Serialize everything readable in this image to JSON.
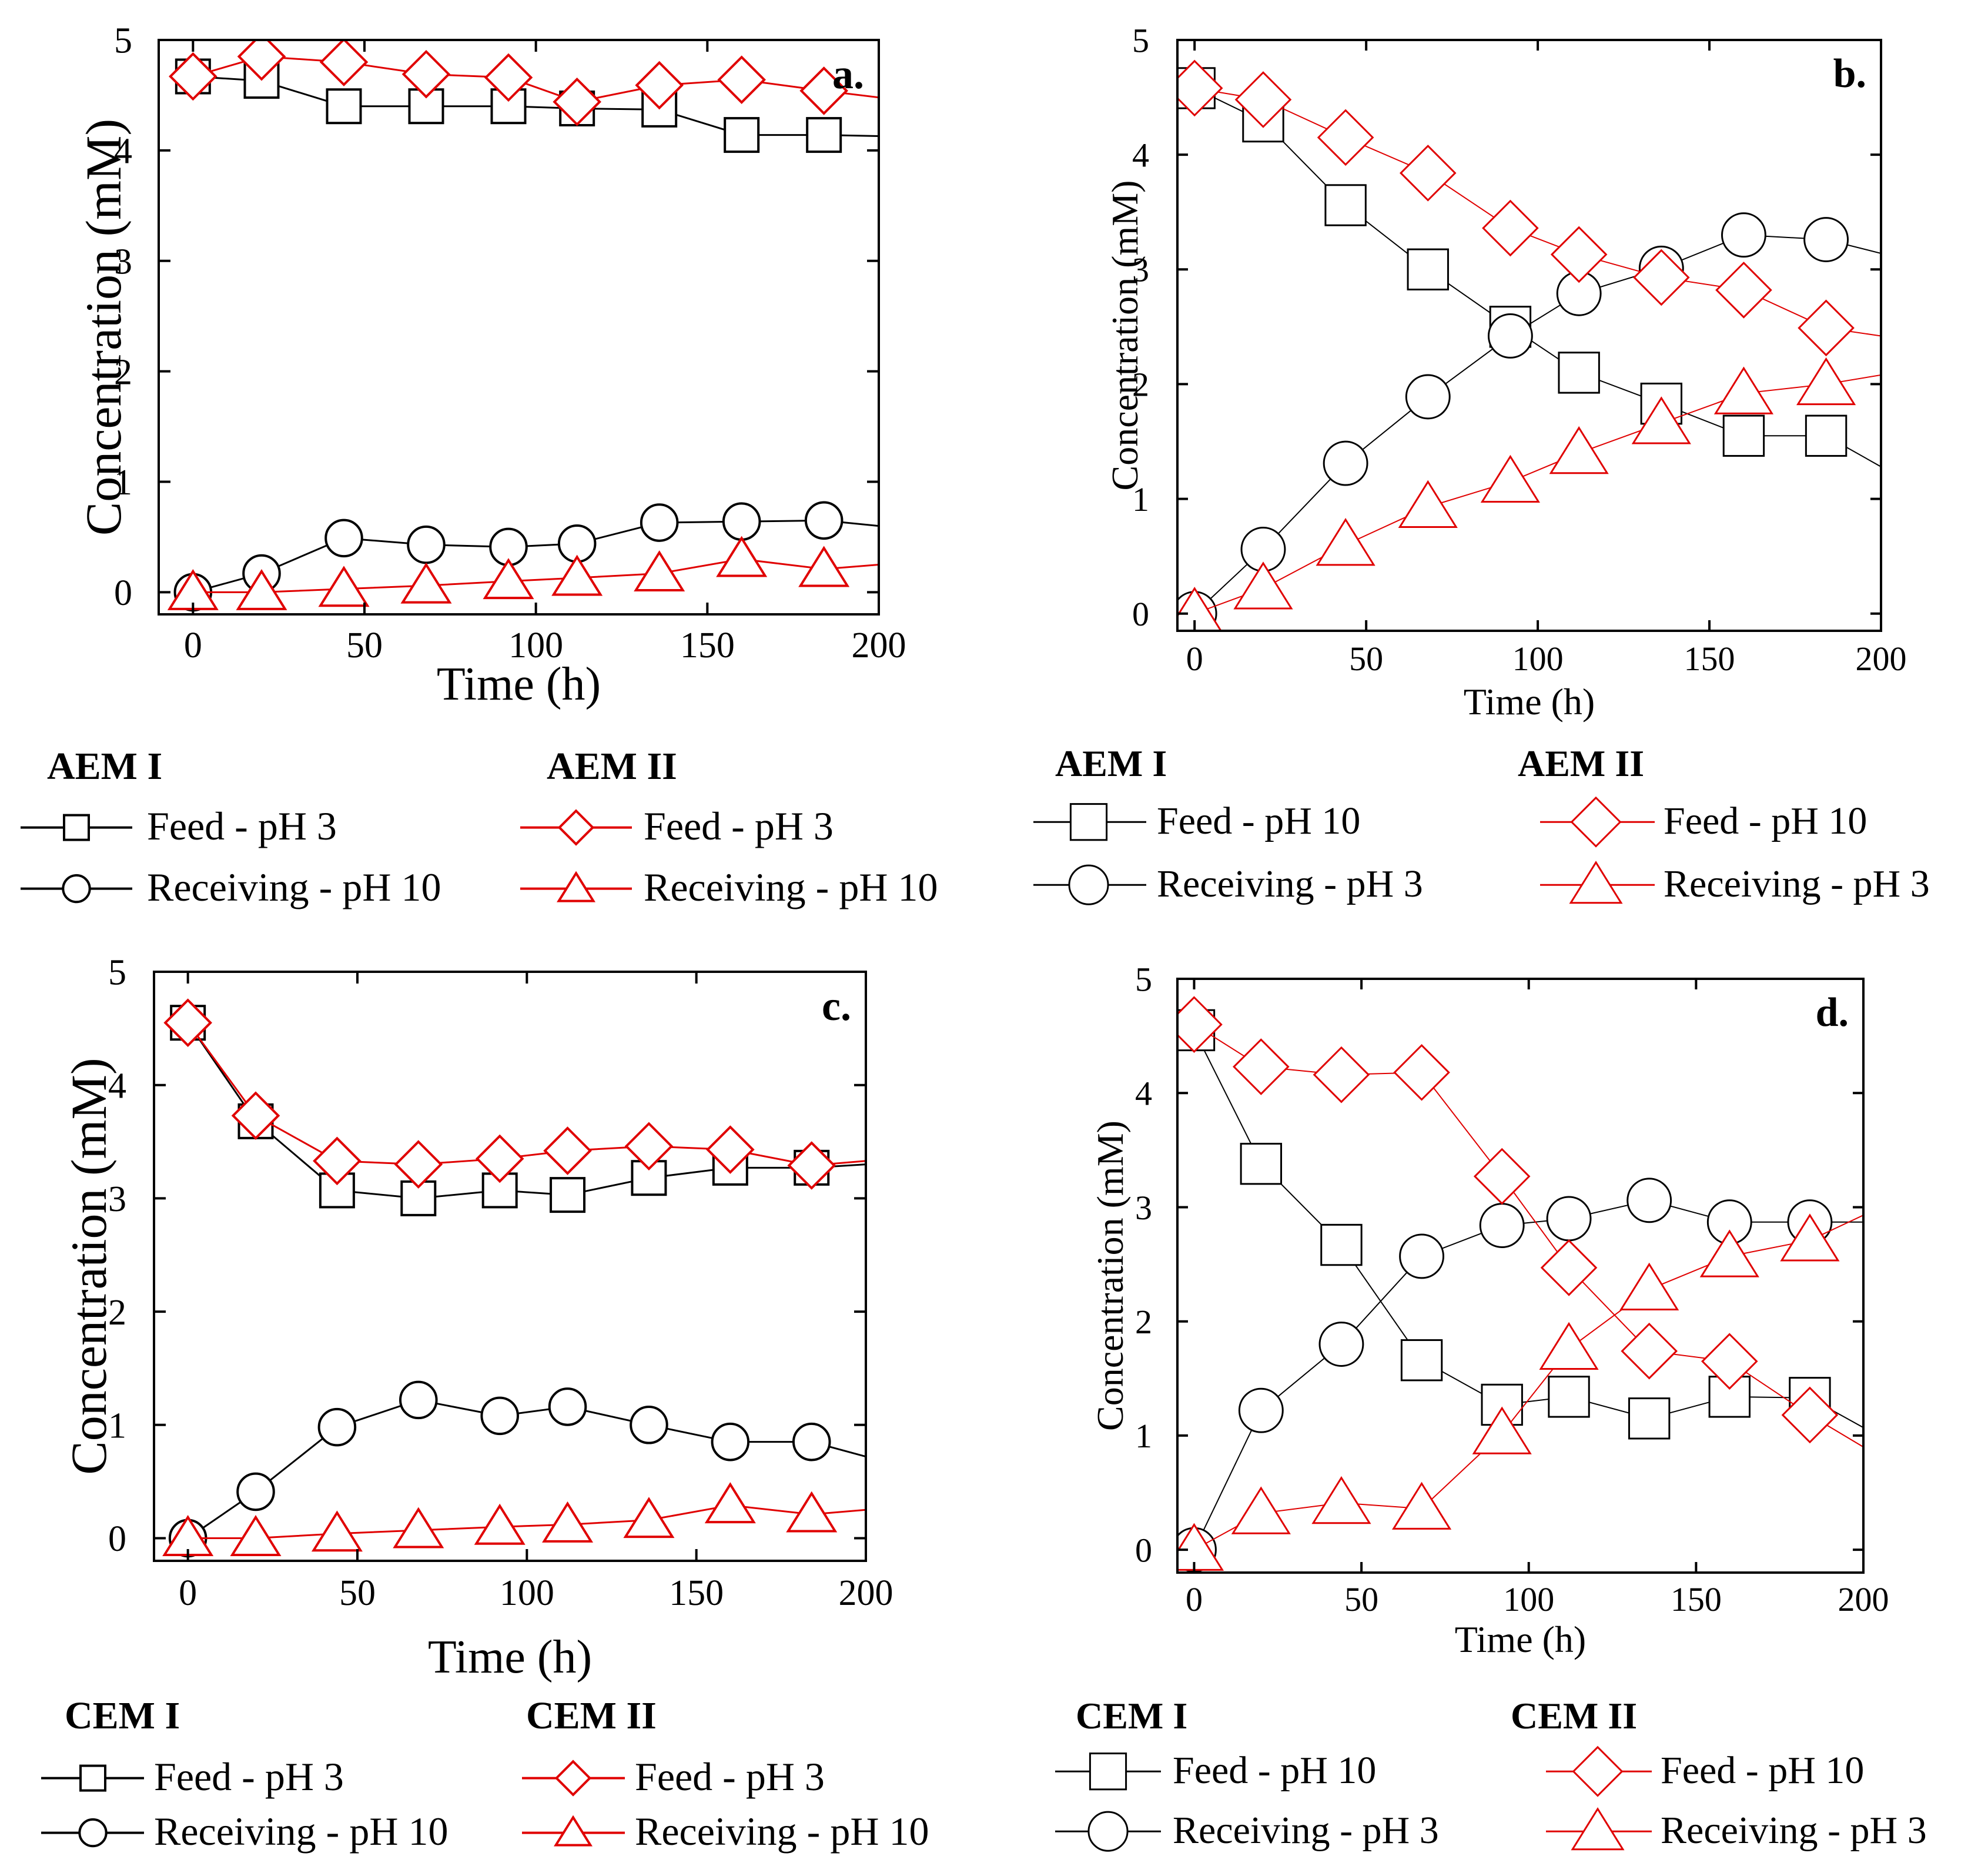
{
  "colors": {
    "black": "#000000",
    "red": "#e00000"
  },
  "chart_data": [
    {
      "panel": "a.",
      "type": "line",
      "xlabel": "Time (h)",
      "ylabel": "Concentration (mM)",
      "xlim": [
        -10,
        200
      ],
      "ylim": [
        -0.2,
        5
      ],
      "xticks": [
        0,
        50,
        100,
        150,
        200
      ],
      "yticks": [
        0,
        1,
        2,
        3,
        4,
        5
      ],
      "x": [
        0,
        20,
        44,
        68,
        92,
        112,
        136,
        160,
        184,
        200
      ],
      "series": [
        {
          "name": "Feed - pH 3",
          "group": "AEM I",
          "marker": "square",
          "color": "black",
          "values": [
            4.67,
            4.63,
            4.4,
            4.4,
            4.4,
            4.38,
            4.37,
            4.14,
            4.14,
            4.13
          ]
        },
        {
          "name": "Receiving - pH 10",
          "group": "AEM I",
          "marker": "circle",
          "color": "black",
          "values": [
            0.0,
            0.17,
            0.49,
            0.43,
            0.41,
            0.44,
            0.63,
            0.64,
            0.65,
            0.6
          ]
        },
        {
          "name": "Feed - pH 3",
          "group": "AEM II",
          "marker": "diamond",
          "color": "red",
          "values": [
            4.67,
            4.85,
            4.8,
            4.69,
            4.66,
            4.44,
            4.59,
            4.64,
            4.54,
            4.48
          ]
        },
        {
          "name": "Receiving - pH 10",
          "group": "AEM II",
          "marker": "triangle",
          "color": "red",
          "values": [
            0.0,
            0.0,
            0.03,
            0.06,
            0.1,
            0.13,
            0.17,
            0.3,
            0.21,
            0.25
          ]
        }
      ],
      "legend": {
        "groups": [
          "AEM I",
          "AEM II"
        ]
      }
    },
    {
      "panel": "b.",
      "type": "line",
      "xlabel": "Time (h)",
      "ylabel": "Concentration (mM)",
      "xlim": [
        -5,
        200
      ],
      "ylim": [
        -0.15,
        5
      ],
      "xticks": [
        0,
        50,
        100,
        150,
        200
      ],
      "yticks": [
        0,
        1,
        2,
        3,
        4,
        5
      ],
      "x": [
        0,
        20,
        44,
        68,
        92,
        112,
        136,
        160,
        184,
        200
      ],
      "series": [
        {
          "name": "Feed - pH 10",
          "group": "AEM I",
          "marker": "square",
          "color": "black",
          "values": [
            4.58,
            4.29,
            3.56,
            3.0,
            2.5,
            2.1,
            1.83,
            1.55,
            1.55,
            1.28
          ]
        },
        {
          "name": "Receiving - pH 3",
          "group": "AEM I",
          "marker": "circle",
          "color": "black",
          "values": [
            0.0,
            0.56,
            1.31,
            1.89,
            2.42,
            2.79,
            3.01,
            3.3,
            3.26,
            3.14
          ]
        },
        {
          "name": "Feed - pH 10",
          "group": "AEM II",
          "marker": "diamond",
          "color": "red",
          "values": [
            4.58,
            4.48,
            4.15,
            3.84,
            3.36,
            3.13,
            2.93,
            2.82,
            2.49,
            2.42
          ]
        },
        {
          "name": "Receiving - pH 3",
          "group": "AEM II",
          "marker": "triangle",
          "color": "red",
          "values": [
            0.0,
            0.22,
            0.6,
            0.93,
            1.15,
            1.4,
            1.66,
            1.92,
            2.0,
            2.08
          ]
        }
      ],
      "legend": {
        "groups": [
          "AEM I",
          "AEM II"
        ]
      }
    },
    {
      "panel": "c.",
      "type": "line",
      "xlabel": "Time (h)",
      "ylabel": "Concentration (mM)",
      "xlim": [
        -10,
        200
      ],
      "ylim": [
        -0.2,
        5
      ],
      "xticks": [
        0,
        50,
        100,
        150,
        200
      ],
      "yticks": [
        0,
        1,
        2,
        3,
        4,
        5
      ],
      "x": [
        0,
        20,
        44,
        68,
        92,
        112,
        136,
        160,
        184,
        200
      ],
      "series": [
        {
          "name": "Feed - pH 3",
          "group": "CEM I",
          "marker": "square",
          "color": "black",
          "values": [
            4.55,
            3.68,
            3.07,
            3.0,
            3.07,
            3.03,
            3.18,
            3.27,
            3.27,
            3.3
          ]
        },
        {
          "name": "Receiving - pH 10",
          "group": "CEM I",
          "marker": "circle",
          "color": "black",
          "values": [
            0.0,
            0.41,
            0.98,
            1.22,
            1.08,
            1.16,
            1.0,
            0.85,
            0.85,
            0.72
          ]
        },
        {
          "name": "Feed - pH 3",
          "group": "CEM II",
          "marker": "diamond",
          "color": "red",
          "values": [
            4.55,
            3.73,
            3.33,
            3.3,
            3.35,
            3.42,
            3.46,
            3.43,
            3.29,
            3.33
          ]
        },
        {
          "name": "Receiving - pH 10",
          "group": "CEM II",
          "marker": "triangle",
          "color": "red",
          "values": [
            0.0,
            0.0,
            0.04,
            0.07,
            0.1,
            0.12,
            0.16,
            0.29,
            0.21,
            0.25
          ]
        }
      ],
      "legend": {
        "groups": [
          "CEM I",
          "CEM II"
        ]
      }
    },
    {
      "panel": "d.",
      "type": "line",
      "xlabel": "Time (h)",
      "ylabel": "Concentration (mM)",
      "xlim": [
        -5,
        200
      ],
      "ylim": [
        -0.2,
        5
      ],
      "xticks": [
        0,
        50,
        100,
        150,
        200
      ],
      "yticks": [
        0,
        1,
        2,
        3,
        4,
        5
      ],
      "x": [
        0,
        20,
        44,
        68,
        92,
        112,
        136,
        160,
        184,
        200
      ],
      "series": [
        {
          "name": "Feed - pH 10",
          "group": "CEM I",
          "marker": "square",
          "color": "black",
          "values": [
            4.55,
            3.38,
            2.67,
            1.66,
            1.27,
            1.34,
            1.15,
            1.34,
            1.33,
            1.07
          ]
        },
        {
          "name": "Receiving - pH 3",
          "group": "CEM I",
          "marker": "circle",
          "color": "black",
          "values": [
            0.0,
            1.22,
            1.8,
            2.57,
            2.84,
            2.9,
            3.06,
            2.87,
            2.87,
            2.87
          ]
        },
        {
          "name": "Feed - pH 10",
          "group": "CEM II",
          "marker": "diamond",
          "color": "red",
          "values": [
            4.6,
            4.23,
            4.16,
            4.18,
            3.27,
            2.47,
            1.74,
            1.65,
            1.18,
            0.9
          ]
        },
        {
          "name": "Receiving - pH 3",
          "group": "CEM II",
          "marker": "triangle",
          "color": "red",
          "values": [
            0.0,
            0.32,
            0.41,
            0.36,
            1.02,
            1.76,
            2.28,
            2.57,
            2.71,
            2.93
          ]
        }
      ],
      "legend": {
        "groups": [
          "CEM I",
          "CEM II"
        ]
      }
    }
  ]
}
